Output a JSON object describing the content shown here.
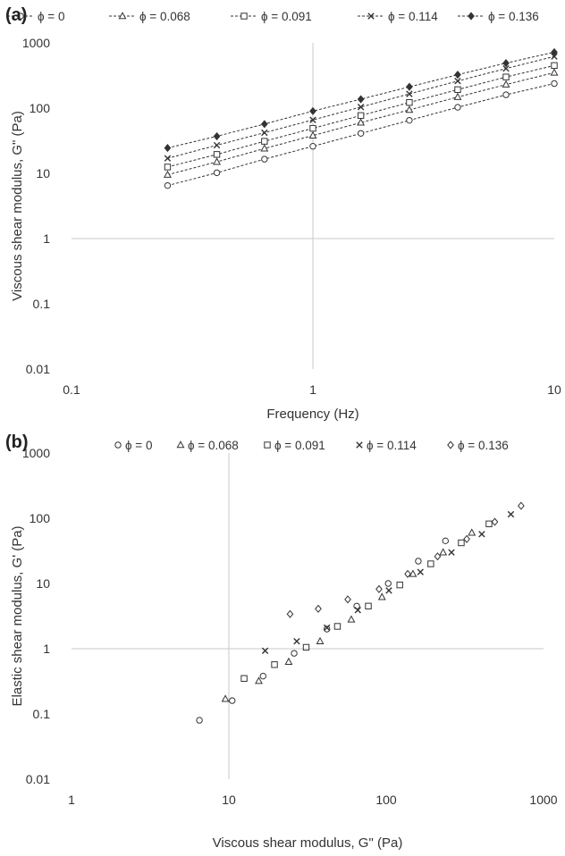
{
  "panels": {
    "a": {
      "letter": "(a)"
    },
    "b": {
      "letter": "(b)"
    }
  },
  "chart_data": [
    {
      "type": "line",
      "panel": "(a)",
      "xlabel": "Frequency (Hz)",
      "ylabel": "Viscous shear modulus, G\" (Pa)",
      "xscale": "log",
      "yscale": "log",
      "xlim": [
        0.1,
        10
      ],
      "ylim": [
        0.01,
        1000
      ],
      "x_ticks": [
        "0.1",
        "1",
        "10"
      ],
      "y_ticks": [
        "0.01",
        "0.1",
        "1",
        "10",
        "100",
        "1000"
      ],
      "grid": "axes crossing at x=1 and y=1",
      "legend_position": "top",
      "x": [
        0.25,
        0.4,
        0.63,
        1.0,
        1.58,
        2.51,
        3.98,
        6.31,
        10.0
      ],
      "series": [
        {
          "name": "ϕ = 0",
          "marker": "circle",
          "values": [
            6.5,
            10.2,
            16.5,
            26,
            41,
            65,
            103,
            160,
            238
          ]
        },
        {
          "name": "ϕ = 0.068",
          "marker": "triangle",
          "values": [
            9.5,
            15,
            24,
            38,
            60,
            94,
            148,
            230,
            350
          ]
        },
        {
          "name": "ϕ = 0.091",
          "marker": "square",
          "values": [
            12.5,
            19.5,
            31,
            49,
            77,
            122,
            192,
            300,
            450
          ]
        },
        {
          "name": "ϕ = 0.114",
          "marker": "x",
          "values": [
            17,
            27,
            42,
            66,
            104,
            165,
            260,
            405,
            620
          ]
        },
        {
          "name": "ϕ = 0.136",
          "marker": "diamond",
          "values": [
            24.5,
            37,
            57,
            90,
            137,
            212,
            325,
            490,
            720
          ]
        }
      ]
    },
    {
      "type": "scatter",
      "panel": "(b)",
      "xlabel": "Viscous shear modulus, G\" (Pa)",
      "ylabel": "Elastic shear modulus, G' (Pa)",
      "xscale": "log",
      "yscale": "log",
      "xlim": [
        1,
        1000
      ],
      "ylim": [
        0.01,
        1000
      ],
      "x_ticks": [
        "1",
        "10",
        "100",
        "1000"
      ],
      "y_ticks": [
        "0.01",
        "0.1",
        "1",
        "10",
        "100",
        "1000"
      ],
      "grid": "axes crossing at x=10 and y=1",
      "legend_position": "top",
      "series": [
        {
          "name": "ϕ = 0",
          "marker": "circle",
          "points": [
            [
              6.5,
              0.08
            ],
            [
              10.5,
              0.16
            ],
            [
              16.5,
              0.38
            ],
            [
              26,
              0.85
            ],
            [
              42,
              2.0
            ],
            [
              65,
              4.5
            ],
            [
              103,
              10
            ],
            [
              160,
              22
            ],
            [
              238,
              45
            ]
          ]
        },
        {
          "name": "ϕ = 0.068",
          "marker": "triangle",
          "points": [
            [
              9.5,
              0.17
            ],
            [
              15.5,
              0.32
            ],
            [
              24,
              0.63
            ],
            [
              38,
              1.3
            ],
            [
              60,
              2.8
            ],
            [
              94,
              6.2
            ],
            [
              148,
              14
            ],
            [
              230,
              30
            ],
            [
              350,
              60
            ]
          ]
        },
        {
          "name": "ϕ = 0.091",
          "marker": "square",
          "points": [
            [
              12.5,
              0.35
            ],
            [
              19.5,
              0.57
            ],
            [
              31,
              1.05
            ],
            [
              49,
              2.2
            ],
            [
              77,
              4.5
            ],
            [
              122,
              9.5
            ],
            [
              192,
              20
            ],
            [
              300,
              42
            ],
            [
              450,
              82
            ]
          ]
        },
        {
          "name": "ϕ = 0.114",
          "marker": "x",
          "points": [
            [
              17,
              0.93
            ],
            [
              27,
              1.3
            ],
            [
              42,
              2.1
            ],
            [
              66,
              3.9
            ],
            [
              104,
              7.8
            ],
            [
              165,
              15
            ],
            [
              260,
              30
            ],
            [
              405,
              57
            ],
            [
              620,
              115
            ]
          ]
        },
        {
          "name": "ϕ = 0.136",
          "marker": "diamond",
          "points": [
            [
              24.5,
              3.4
            ],
            [
              37,
              4.1
            ],
            [
              57,
              5.7
            ],
            [
              90,
              8.2
            ],
            [
              137,
              14
            ],
            [
              212,
              26
            ],
            [
              325,
              48
            ],
            [
              490,
              88
            ],
            [
              720,
              155
            ]
          ]
        }
      ]
    }
  ]
}
